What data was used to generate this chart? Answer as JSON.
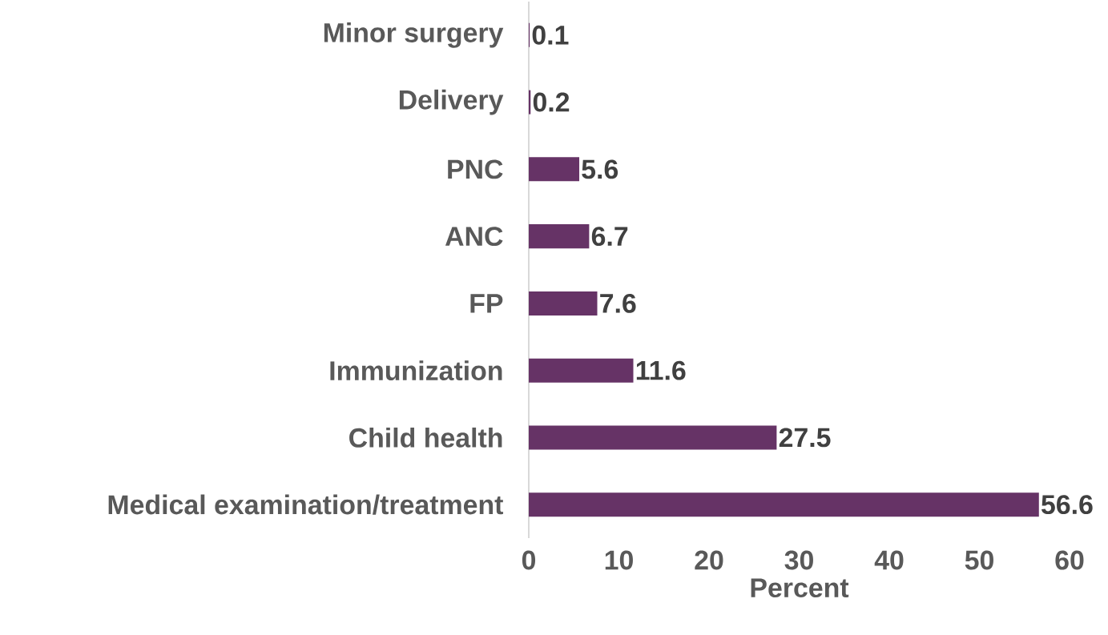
{
  "chart_data": {
    "type": "bar",
    "orientation": "horizontal",
    "xlabel": "Percent",
    "categories": [
      "Minor surgery",
      "Delivery",
      "PNC",
      "ANC",
      "FP",
      "Immunization",
      "Child health",
      "Medical examination/treatment"
    ],
    "values": [
      0.1,
      0.2,
      5.6,
      6.7,
      7.6,
      11.6,
      27.5,
      56.6
    ],
    "color": "#663366",
    "xlim": [
      0,
      60
    ],
    "xticks": [
      0,
      10,
      20,
      30,
      40,
      50,
      60
    ],
    "data_labels": true
  }
}
